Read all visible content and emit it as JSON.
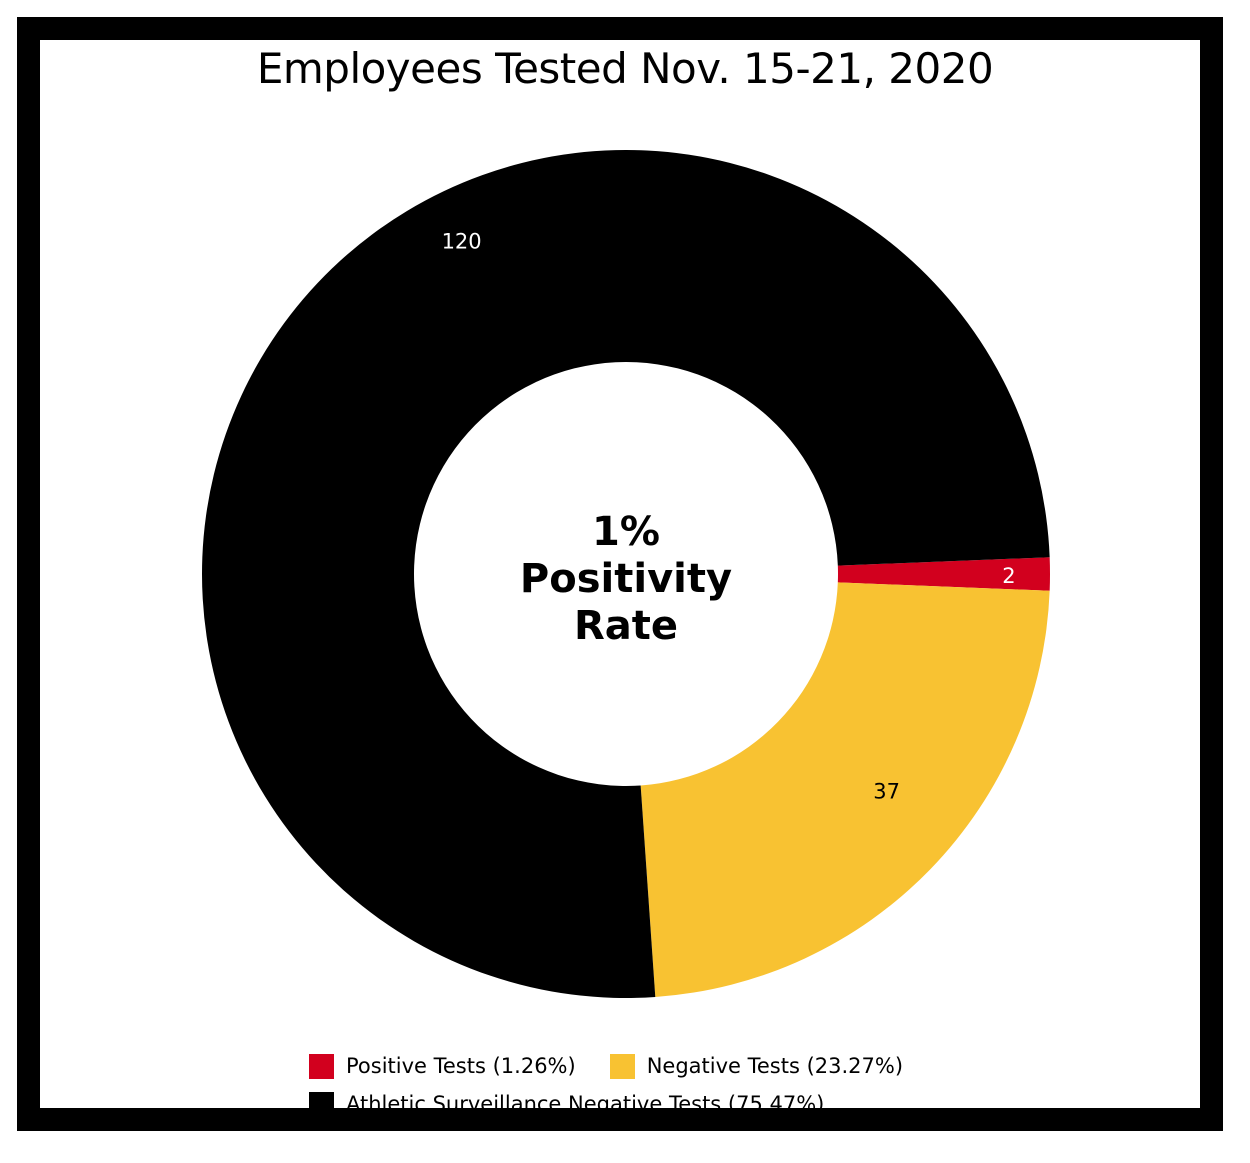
{
  "chart_data": {
    "type": "pie",
    "variant": "donut",
    "title": "Employees Tested Nov. 15-21, 2020",
    "center_text": [
      "1%",
      "Positivity",
      "Rate"
    ],
    "slices": [
      {
        "label": "Positive Tests (1.26%)",
        "value": 2,
        "data_label": "2",
        "color": "#d2001e"
      },
      {
        "label": "Negative Tests (23.27%)",
        "value": 37,
        "data_label": "37",
        "color": "#f8c232"
      },
      {
        "label": "Athletic Surveillance Negative Tests (75.47%)",
        "value": 120,
        "data_label": "120",
        "color": "#000000"
      }
    ],
    "legend_placement": "bottom"
  }
}
